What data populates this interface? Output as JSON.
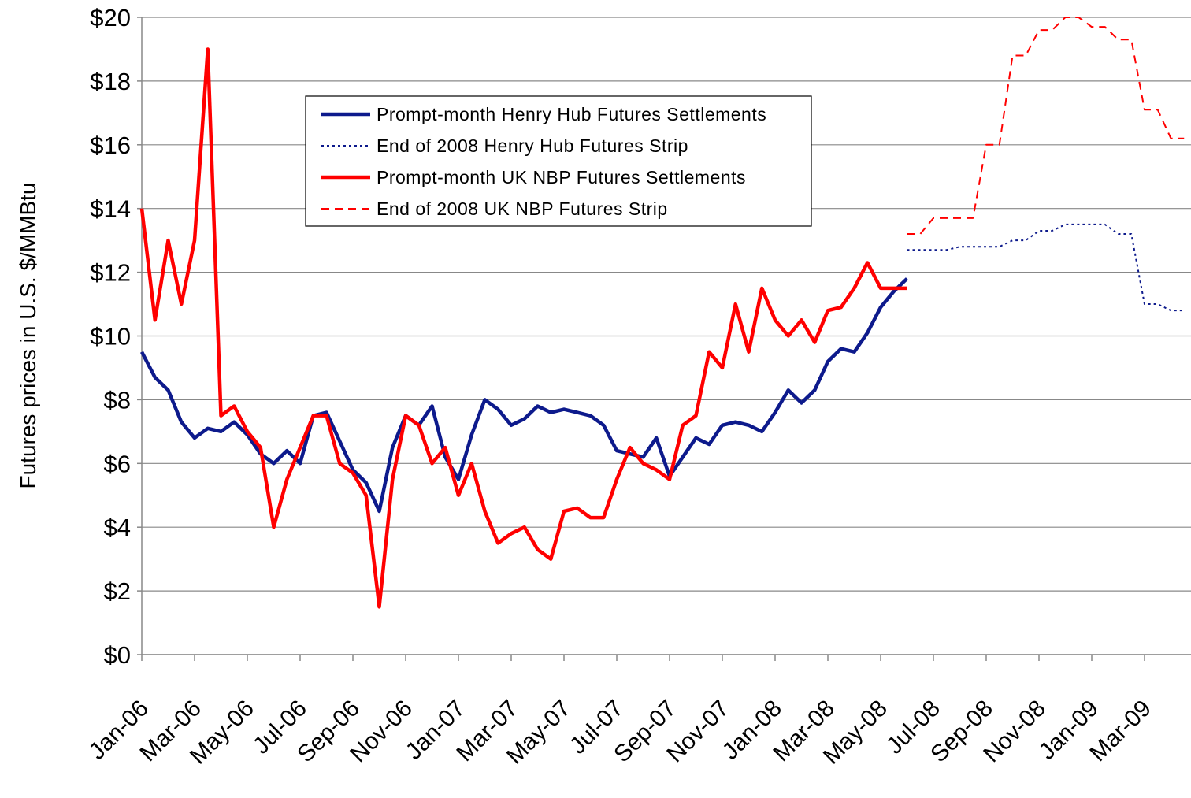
{
  "chart_data": {
    "type": "line",
    "ylabel": "Futures prices in U.S. $/MMBtu",
    "categories": [
      "Jan-06",
      null,
      null,
      null,
      "Mar-06",
      null,
      null,
      null,
      "May-06",
      null,
      null,
      null,
      "Jul-06",
      null,
      null,
      null,
      "Sep-06",
      null,
      null,
      null,
      "Nov-06",
      null,
      null,
      null,
      "Jan-07",
      null,
      null,
      null,
      "Mar-07",
      null,
      null,
      null,
      "May-07",
      null,
      null,
      null,
      "Jul-07",
      null,
      null,
      null,
      "Sep-07",
      null,
      null,
      null,
      "Nov-07",
      null,
      null,
      null,
      "Jan-08",
      null,
      null,
      null,
      "Mar-08",
      null,
      null,
      null,
      "May-08",
      null,
      null,
      null,
      "Jul-08",
      null,
      null,
      null,
      "Sep-08",
      null,
      null,
      null,
      "Nov-08",
      null,
      null,
      null,
      "Jan-09",
      null,
      null,
      null,
      "Mar-09",
      null,
      null,
      null
    ],
    "series": [
      {
        "name": "Prompt-month Henry Hub Futures Settlements",
        "color": "#0d1a8c",
        "style": "solid",
        "values": [
          9.5,
          8.7,
          8.3,
          7.3,
          6.8,
          7.1,
          7.0,
          7.3,
          6.9,
          6.3,
          6.0,
          6.4,
          6.0,
          7.5,
          7.6,
          6.7,
          5.8,
          5.4,
          4.5,
          6.5,
          7.5,
          7.2,
          7.8,
          6.2,
          5.5,
          6.9,
          8.0,
          7.7,
          7.2,
          7.4,
          7.8,
          7.6,
          7.7,
          7.6,
          7.5,
          7.2,
          6.4,
          6.3,
          6.2,
          6.8,
          5.6,
          6.2,
          6.8,
          6.6,
          7.2,
          7.3,
          7.2,
          7.0,
          7.6,
          8.3,
          7.9,
          8.3,
          9.2,
          9.6,
          9.5,
          10.1,
          10.9,
          11.4,
          11.8,
          null,
          null,
          null,
          null,
          null,
          null,
          null,
          null,
          null,
          null,
          null,
          null,
          null,
          null,
          null,
          null,
          null,
          null,
          null,
          null,
          null
        ]
      },
      {
        "name": "End of 2008 Henry Hub Futures Strip",
        "color": "#0d1a8c",
        "style": "dotted",
        "values": [
          null,
          null,
          null,
          null,
          null,
          null,
          null,
          null,
          null,
          null,
          null,
          null,
          null,
          null,
          null,
          null,
          null,
          null,
          null,
          null,
          null,
          null,
          null,
          null,
          null,
          null,
          null,
          null,
          null,
          null,
          null,
          null,
          null,
          null,
          null,
          null,
          null,
          null,
          null,
          null,
          null,
          null,
          null,
          null,
          null,
          null,
          null,
          null,
          null,
          null,
          null,
          null,
          null,
          null,
          null,
          null,
          null,
          null,
          12.7,
          12.7,
          12.7,
          12.7,
          12.8,
          12.8,
          12.8,
          12.8,
          13.0,
          13.0,
          13.3,
          13.3,
          13.5,
          13.5,
          13.5,
          13.5,
          13.2,
          13.2,
          11.0,
          11.0,
          10.8,
          10.8
        ]
      },
      {
        "name": "Prompt-month  UK NBP Futures Settlements",
        "color": "#ff0000",
        "style": "solid",
        "values": [
          14,
          10.5,
          13,
          11,
          13,
          19,
          7.5,
          7.8,
          7,
          6.5,
          4.0,
          5.5,
          6.5,
          7.5,
          7.5,
          6,
          5.7,
          5.0,
          1.5,
          5.5,
          7.5,
          7.2,
          6,
          6.5,
          5.0,
          6.0,
          4.5,
          3.5,
          3.8,
          4.0,
          3.3,
          3.0,
          4.5,
          4.6,
          4.3,
          4.3,
          5.5,
          6.5,
          6.0,
          5.8,
          5.5,
          7.2,
          7.5,
          9.5,
          9.0,
          11.0,
          9.5,
          11.5,
          10.5,
          10.0,
          10.5,
          9.8,
          10.8,
          10.9,
          11.5,
          12.3,
          11.5,
          11.5,
          11.5,
          null,
          null,
          null,
          null,
          null,
          null,
          null,
          null,
          null,
          null,
          null,
          null,
          null,
          null,
          null,
          null,
          null,
          null,
          null,
          null,
          null
        ]
      },
      {
        "name": "End of 2008 UK NBP Futures Strip",
        "color": "#ff0000",
        "style": "dashed",
        "values": [
          null,
          null,
          null,
          null,
          null,
          null,
          null,
          null,
          null,
          null,
          null,
          null,
          null,
          null,
          null,
          null,
          null,
          null,
          null,
          null,
          null,
          null,
          null,
          null,
          null,
          null,
          null,
          null,
          null,
          null,
          null,
          null,
          null,
          null,
          null,
          null,
          null,
          null,
          null,
          null,
          null,
          null,
          null,
          null,
          null,
          null,
          null,
          null,
          null,
          null,
          null,
          null,
          null,
          null,
          null,
          null,
          null,
          null,
          13.2,
          13.2,
          13.7,
          13.7,
          13.7,
          13.7,
          16.0,
          16.0,
          18.8,
          18.8,
          19.6,
          19.6,
          20.0,
          20.0,
          19.7,
          19.7,
          19.3,
          19.3,
          17.1,
          17.1,
          16.2,
          16.2
        ]
      }
    ],
    "ylim": [
      0,
      20
    ],
    "yticks": [
      {
        "value": 0,
        "label": "$0"
      },
      {
        "value": 2,
        "label": "$2"
      },
      {
        "value": 4,
        "label": "$4"
      },
      {
        "value": 6,
        "label": "$6"
      },
      {
        "value": 8,
        "label": "$8"
      },
      {
        "value": 10,
        "label": "$10"
      },
      {
        "value": 12,
        "label": "$12"
      },
      {
        "value": 14,
        "label": "$14"
      },
      {
        "value": 16,
        "label": "$16"
      },
      {
        "value": 18,
        "label": "$18"
      },
      {
        "value": 20,
        "label": "$20"
      }
    ],
    "grid": true
  }
}
